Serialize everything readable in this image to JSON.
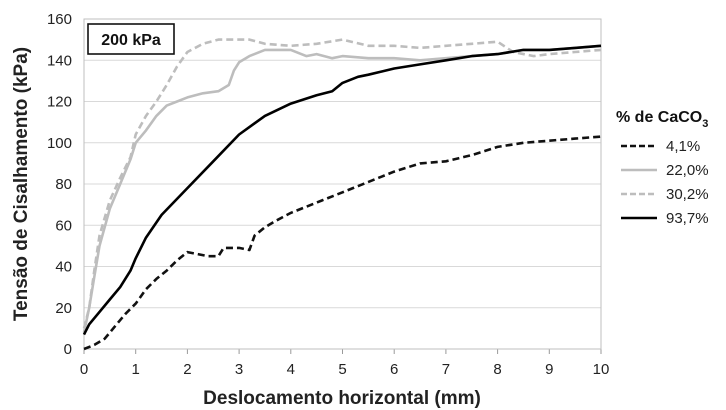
{
  "chart_data": {
    "type": "line",
    "xlabel": "Deslocamento horizontal (mm)",
    "ylabel": "Tensão de Cisalhamento (kPa)",
    "xlim": [
      0,
      10
    ],
    "ylim": [
      0,
      160
    ],
    "xticks": [
      "0",
      "1",
      "2",
      "3",
      "4",
      "5",
      "6",
      "7",
      "8",
      "9",
      "10"
    ],
    "yticks": [
      "0",
      "20",
      "40",
      "60",
      "80",
      "100",
      "120",
      "140",
      "160"
    ],
    "grid": "horizontal",
    "annotation": "200 kPa",
    "legend": {
      "placement": "right",
      "title_prefix": "% de CaCO",
      "title_subscript": "3"
    },
    "series": [
      {
        "name": "4,1%",
        "color": "#111111",
        "dash": "dashed",
        "x": [
          0,
          0.2,
          0.4,
          0.6,
          0.8,
          1.0,
          1.2,
          1.4,
          1.6,
          1.8,
          2.0,
          2.2,
          2.4,
          2.6,
          2.7,
          2.8,
          3.0,
          3.2,
          3.3,
          3.5,
          3.7,
          4.0,
          4.3,
          4.6,
          5.0,
          5.5,
          6.0,
          6.5,
          7.0,
          7.5,
          8.0,
          8.5,
          9.0,
          9.5,
          10.0
        ],
        "y": [
          0,
          2,
          5,
          11,
          17,
          22,
          29,
          34,
          38,
          43,
          47,
          46,
          45,
          45,
          49,
          49,
          49,
          48,
          55,
          59,
          62,
          66,
          69,
          72,
          76,
          81,
          86,
          90,
          91,
          94,
          98,
          100,
          101,
          102,
          103
        ]
      },
      {
        "name": "22,0%",
        "color": "#bdbdbd",
        "dash": "solid",
        "x": [
          0,
          0.1,
          0.2,
          0.3,
          0.5,
          0.7,
          0.9,
          1.0,
          1.2,
          1.4,
          1.6,
          1.8,
          2.0,
          2.3,
          2.6,
          2.8,
          2.9,
          3.0,
          3.2,
          3.5,
          4.0,
          4.3,
          4.5,
          4.8,
          5.0,
          5.5,
          6.0,
          6.5,
          7.0,
          7.5,
          8.0,
          8.5,
          9.0,
          9.5,
          10.0
        ],
        "y": [
          8,
          20,
          35,
          50,
          68,
          80,
          92,
          100,
          106,
          113,
          118,
          120,
          122,
          124,
          125,
          128,
          135,
          139,
          142,
          145,
          145,
          142,
          143,
          141,
          142,
          141,
          141,
          140,
          141,
          142,
          143,
          145,
          145,
          146,
          147
        ]
      },
      {
        "name": "30,2%",
        "color": "#bdbdbd",
        "dash": "dashed",
        "x": [
          0,
          0.1,
          0.2,
          0.3,
          0.5,
          0.7,
          0.9,
          1.0,
          1.2,
          1.4,
          1.6,
          1.8,
          2.0,
          2.3,
          2.6,
          3.0,
          3.2,
          3.5,
          4.0,
          4.5,
          5.0,
          5.5,
          6.0,
          6.5,
          7.0,
          7.5,
          8.0,
          8.3,
          8.7,
          9.0,
          9.5,
          10.0
        ],
        "y": [
          10,
          20,
          38,
          55,
          72,
          83,
          93,
          104,
          113,
          120,
          128,
          137,
          144,
          148,
          150,
          150,
          150,
          148,
          147,
          148,
          150,
          147,
          147,
          146,
          147,
          148,
          149,
          144,
          142,
          143,
          144,
          145
        ]
      },
      {
        "name": "93,7%",
        "color": "#000000",
        "dash": "solid",
        "x": [
          0,
          0.1,
          0.3,
          0.5,
          0.7,
          0.9,
          1.0,
          1.2,
          1.5,
          2.0,
          2.5,
          3.0,
          3.5,
          4.0,
          4.5,
          4.8,
          5.0,
          5.3,
          5.5,
          6.0,
          6.5,
          7.0,
          7.5,
          8.0,
          8.5,
          9.0,
          9.5,
          10.0
        ],
        "y": [
          7,
          12,
          18,
          24,
          30,
          38,
          44,
          54,
          65,
          78,
          91,
          104,
          113,
          119,
          123,
          125,
          129,
          132,
          133,
          136,
          138,
          140,
          142,
          143,
          145,
          145,
          146,
          147
        ]
      }
    ]
  }
}
